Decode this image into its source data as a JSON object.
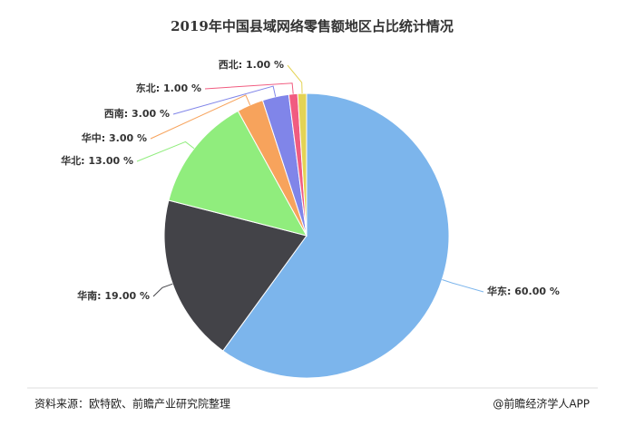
{
  "chart_data": {
    "type": "pie",
    "title": "2019年中国县域网络零售额地区占比统计情况",
    "values": [
      60,
      19,
      13,
      3,
      3,
      1,
      1
    ],
    "value_labels": [
      "华东: 60.00 %",
      "华南: 19.00 %",
      "华北: 13.00 %",
      "华中: 3.00 %",
      "西南: 3.00 %",
      "东北: 1.00 %",
      "西北: 1.00 %"
    ],
    "colors": [
      "#7cb5ec",
      "#434348",
      "#90ed7d",
      "#f7a35c",
      "#8085e9",
      "#f15c80",
      "#e4d354"
    ]
  },
  "source": "资料来源：欧特欧、前瞻产业研究院整理",
  "credit": "@前瞻经济学人APP"
}
